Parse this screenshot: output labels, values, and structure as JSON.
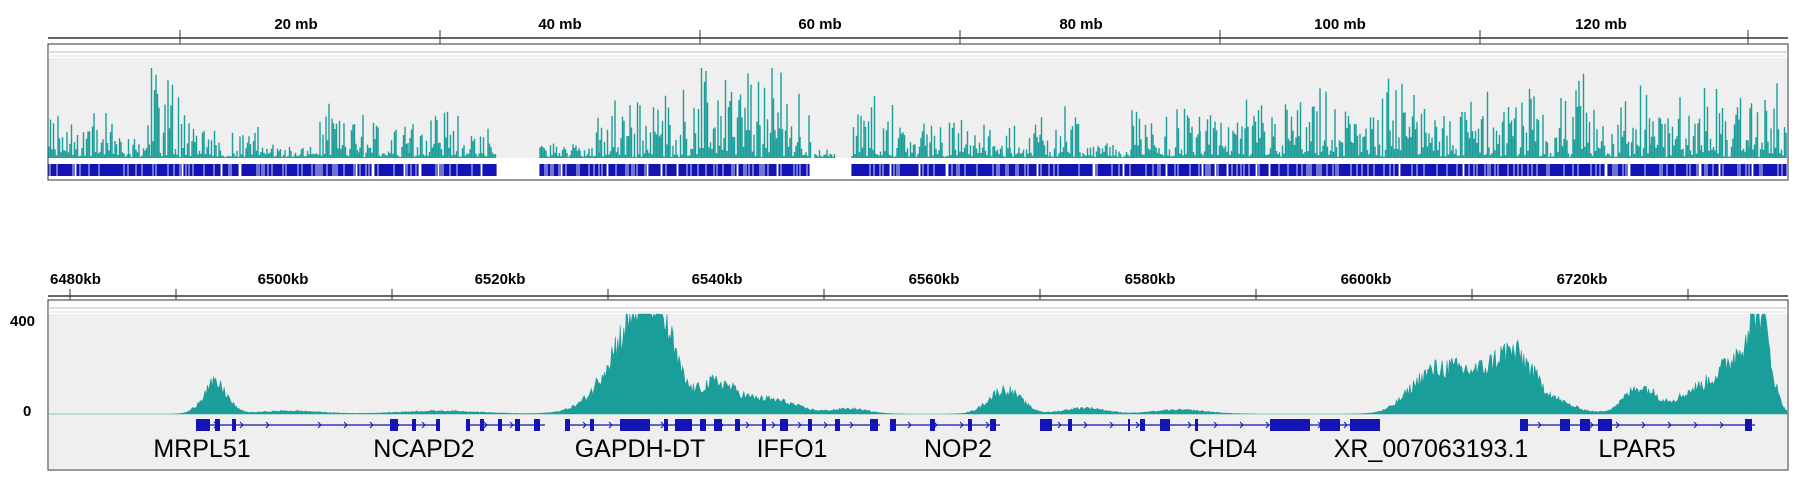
{
  "colors": {
    "coverage": "#1a9e9a",
    "gene": "#1414b4",
    "panel_bg": "#efefef",
    "panel_border": "#555555",
    "ruler_line": "#333333"
  },
  "top_panel": {
    "ruler_ticks": [
      "20 mb",
      "40 mb",
      "60 mb",
      "80 mb",
      "100 mb",
      "120 mb"
    ]
  },
  "bottom_panel": {
    "ruler_ticks": [
      "6480kb",
      "6500kb",
      "6520kb",
      "6540kb",
      "6560kb",
      "6580kb",
      "6600kb",
      "6720kb"
    ],
    "y_axis_labels": [
      "400",
      "0"
    ],
    "genes": [
      "MRPL51",
      "NCAPD2",
      "GAPDH-DT",
      "IFFO1",
      "NOP2",
      "CHD4",
      "XR_007063193.1",
      "LPAR5"
    ]
  }
}
